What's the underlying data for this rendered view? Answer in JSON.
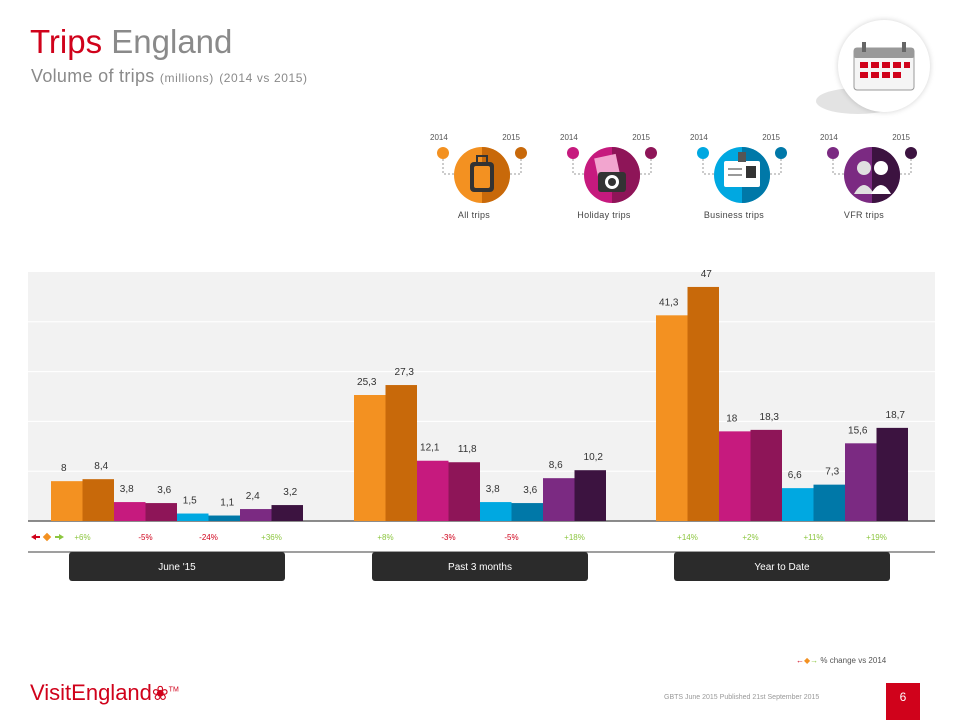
{
  "title": {
    "part1": "Trips",
    "part2": "England"
  },
  "subtitle": {
    "main": "Volume of trips",
    "unit": "(millions)",
    "period": "(2014 vs 2015)"
  },
  "legend": [
    {
      "label": "All trips",
      "year1": "2014",
      "year2": "2015",
      "icon": "luggage-icon",
      "color": "#f39121"
    },
    {
      "label": "Holiday trips",
      "year1": "2014",
      "year2": "2015",
      "icon": "camera-icon",
      "color": "#c61a7e"
    },
    {
      "label": "Business trips",
      "year1": "2014",
      "year2": "2015",
      "icon": "id-badge-icon",
      "color": "#00a8e1"
    },
    {
      "label": "VFR trips",
      "year1": "2014",
      "year2": "2015",
      "icon": "people-icon",
      "color": "#6b2a7d"
    }
  ],
  "colors": {
    "all_2014": "#f39121",
    "all_2015": "#c8690a",
    "holiday_2014": "#c61a7e",
    "holiday_2015": "#8e1558",
    "business_2014": "#00a8e1",
    "business_2015": "#0078a8",
    "vfr_2014": "#7b2a82",
    "vfr_2015": "#3c1340",
    "change_text": "#8cc63f",
    "change_negative": "#d0021b"
  },
  "chart_data": {
    "type": "bar",
    "categories": [
      "June '15",
      "Past 3 months",
      "Year to Date"
    ],
    "series": [
      {
        "name": "All trips",
        "values_2014": [
          8,
          25.3,
          41.3
        ],
        "values_2015": [
          8.4,
          27.3,
          47
        ],
        "labels_2014": [
          "8",
          "25,3",
          "41,3"
        ],
        "labels_2015": [
          "8,4",
          "27,3",
          "47"
        ],
        "change": [
          "+6%",
          "+8%",
          "+14%"
        ]
      },
      {
        "name": "Holiday trips",
        "values_2014": [
          3.8,
          12.1,
          18
        ],
        "values_2015": [
          3.6,
          11.8,
          18.3
        ],
        "labels_2014": [
          "3,8",
          "12,1",
          "18"
        ],
        "labels_2015": [
          "3,6",
          "11,8",
          "18,3"
        ],
        "change": [
          "-5%",
          "-3%",
          "+2%"
        ]
      },
      {
        "name": "Business trips",
        "values_2014": [
          1.5,
          3.8,
          6.6
        ],
        "values_2015": [
          1.1,
          3.6,
          7.3
        ],
        "labels_2014": [
          "1,5",
          "3,8",
          "6,6"
        ],
        "labels_2015": [
          "1,1",
          "3,6",
          "7,3"
        ],
        "change": [
          "-24%",
          "-5%",
          "+11%"
        ]
      },
      {
        "name": "VFR trips",
        "values_2014": [
          2.4,
          8.6,
          15.6
        ],
        "values_2015": [
          3.2,
          10.2,
          18.7
        ],
        "labels_2014": [
          "2,4",
          "8,6",
          "15,6"
        ],
        "labels_2015": [
          "3,2",
          "10,2",
          "18,7"
        ],
        "change": [
          "+36%",
          "+18%",
          "+19%"
        ]
      }
    ],
    "ylim": [
      0,
      50
    ],
    "grid": true
  },
  "change_legend_text": "% change vs 2014",
  "logo": {
    "text": "VisitEngland",
    "mark": "TM"
  },
  "footer": "GBTS June 2015 Published 21st September 2015",
  "page_number": "6"
}
